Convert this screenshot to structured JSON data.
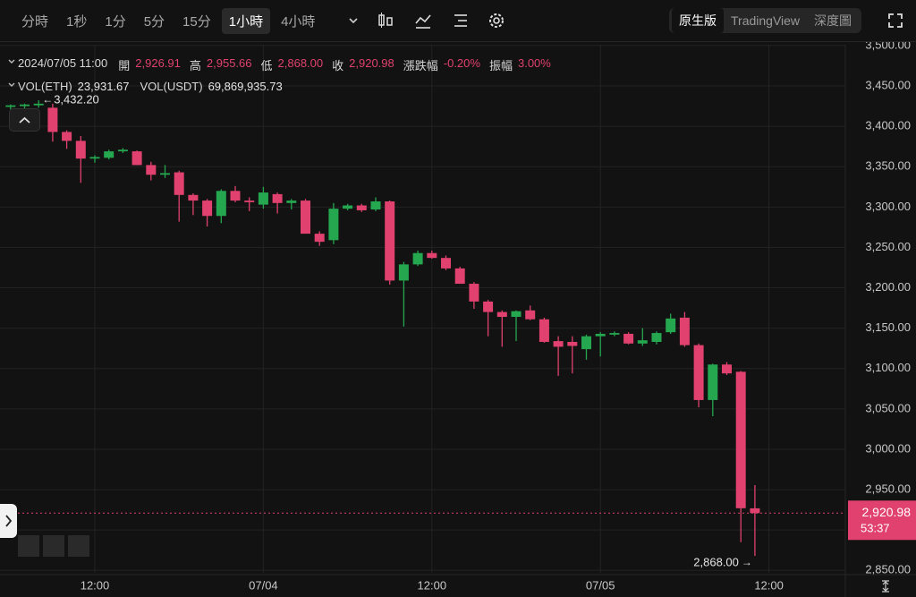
{
  "toolbar": {
    "intervals": [
      "分時",
      "1秒",
      "1分",
      "5分",
      "15分",
      "1小時",
      "4小時"
    ],
    "views": [
      "原生版",
      "TradingView",
      "深度圖"
    ]
  },
  "legend": {
    "time": "2024/07/05 11:00",
    "items": [
      {
        "label": "開",
        "value": "2,926.91"
      },
      {
        "label": "高",
        "value": "2,955.66"
      },
      {
        "label": "低",
        "value": "2,868.00"
      },
      {
        "label": "收",
        "value": "2,920.98"
      },
      {
        "label": "漲跌幅",
        "value": "-0.20%"
      },
      {
        "label": "振幅",
        "value": "3.00%"
      }
    ],
    "volume": [
      {
        "label": "VOL(ETH)",
        "value": "23,931.67"
      },
      {
        "label": "VOL(USDT)",
        "value": "69,869,935.73"
      }
    ]
  },
  "chart_data": {
    "type": "candlestick",
    "up_color": "#25a750",
    "down_color": "#e0416e",
    "grid": true,
    "xtick_labels": [
      "12:00",
      "07/04",
      "12:00",
      "07/05",
      "12:00"
    ],
    "open": [
      3424,
      3425,
      3426,
      3423,
      3393,
      3382,
      3360,
      3361,
      3369,
      3369,
      3352,
      3340,
      3343,
      3315,
      3308,
      3289,
      3320,
      3308,
      3303,
      3316,
      3305,
      3308,
      3267,
      3259,
      3298,
      3302,
      3297,
      3307,
      3209,
      3229,
      3243,
      3237,
      3224,
      3205,
      3183,
      3170,
      3164,
      3172,
      3161,
      3134,
      3133,
      3124,
      3140,
      3142,
      3143,
      3131,
      3133,
      3145,
      3163,
      3129,
      3061,
      3105,
      3096,
      2926.91
    ],
    "high": [
      3427,
      3428,
      3432.2,
      3428,
      3395,
      3388,
      3364,
      3371,
      3373,
      3370,
      3356,
      3352,
      3345,
      3317,
      3310,
      3322,
      3326,
      3312,
      3325,
      3318,
      3310,
      3310,
      3270,
      3305,
      3304,
      3304,
      3312,
      3308,
      3232,
      3246,
      3246,
      3240,
      3226,
      3207,
      3185,
      3172,
      3172,
      3178,
      3163,
      3140,
      3140,
      3142,
      3145,
      3146,
      3145,
      3150,
      3146,
      3168,
      3170,
      3131,
      3106,
      3108,
      3097,
      2955.66
    ],
    "low": [
      3421,
      3422,
      3423,
      3381,
      3372,
      3330,
      3355,
      3359,
      3367,
      3352,
      3333,
      3336,
      3282,
      3290,
      3276,
      3280,
      3306,
      3295,
      3298,
      3292,
      3297,
      3267,
      3252,
      3254,
      3296,
      3294,
      3295,
      3204,
      3152,
      3227,
      3236,
      3222,
      3205,
      3174,
      3140,
      3127,
      3134,
      3160,
      3132,
      3091,
      3094,
      3111,
      3115,
      3140,
      3130,
      3128,
      3130,
      3143,
      3127,
      3052,
      3041,
      3092,
      2885,
      2868
    ],
    "close": [
      3426,
      3427,
      3428,
      3393,
      3382,
      3360,
      3362,
      3369,
      3371,
      3352,
      3340,
      3342,
      3315,
      3308,
      3289,
      3320,
      3308,
      3306,
      3318,
      3305,
      3308,
      3267,
      3257,
      3298,
      3302,
      3296,
      3307,
      3209,
      3229,
      3243,
      3237,
      3224,
      3205,
      3183,
      3170,
      3164,
      3171,
      3161,
      3133,
      3127,
      3128,
      3140,
      3143,
      3144,
      3131,
      3135,
      3144,
      3162,
      3129,
      3061,
      3105,
      3094,
      2927,
      2920.98
    ],
    "ylim": [
      2847,
      3501
    ],
    "yticks": [
      {
        "value": 2850,
        "label": "2,850.00"
      },
      {
        "value": 2900,
        "label": "2,900.00"
      },
      {
        "value": 2950,
        "label": "2,950.00"
      },
      {
        "value": 3000,
        "label": "3,000.00"
      },
      {
        "value": 3050,
        "label": "3,050.00"
      },
      {
        "value": 3100,
        "label": "3,100.00"
      },
      {
        "value": 3150,
        "label": "3,150.00"
      },
      {
        "value": 3200,
        "label": "3,200.00"
      },
      {
        "value": 3250,
        "label": "3,250.00"
      },
      {
        "value": 3300,
        "label": "3,300.00"
      },
      {
        "value": 3350,
        "label": "3,350.00"
      },
      {
        "value": 3400,
        "label": "3,400.00"
      },
      {
        "value": 3450,
        "label": "3,450.00"
      },
      {
        "value": 3500,
        "label": "3,500.00"
      }
    ],
    "high_marker": "3,432.20",
    "low_marker": "2,868.00",
    "price_tag": {
      "price": "2,920.98",
      "countdown": "53:37"
    }
  }
}
